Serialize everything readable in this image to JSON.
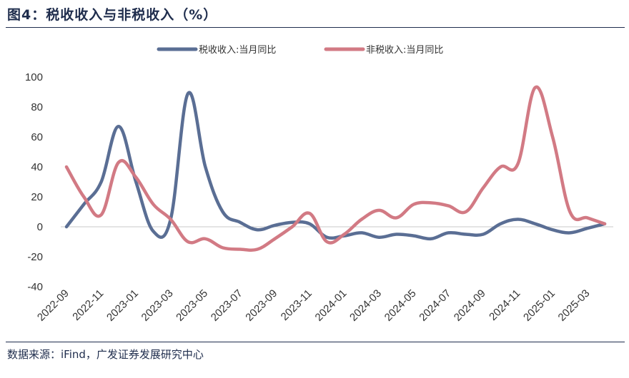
{
  "title": "图4：税收收入与非税收入（%）",
  "source": "数据来源：iFind，广发证券发展研究中心",
  "chart_data": {
    "type": "line",
    "title": "图4：税收收入与非税收入（%）",
    "xlabel": "",
    "ylabel": "",
    "ylim": [
      -40,
      100
    ],
    "yticks": [
      -40,
      -20,
      0,
      20,
      40,
      60,
      80,
      100
    ],
    "grid": false,
    "legend_position": "top-center",
    "x": [
      "2022-09",
      "2022-10",
      "2022-11",
      "2022-12",
      "2023-01",
      "2023-02",
      "2023-03",
      "2023-04",
      "2023-05",
      "2023-06",
      "2023-07",
      "2023-08",
      "2023-09",
      "2023-10",
      "2023-11",
      "2023-12",
      "2024-01",
      "2024-02",
      "2024-03",
      "2024-04",
      "2024-05",
      "2024-06",
      "2024-07",
      "2024-08",
      "2024-09",
      "2024-10",
      "2024-11",
      "2024-12",
      "2025-01",
      "2025-02",
      "2025-03",
      "2025-04"
    ],
    "xtick_labels": [
      "2022-09",
      "2022-11",
      "2023-01",
      "2023-03",
      "2023-05",
      "2023-07",
      "2023-09",
      "2023-11",
      "2024-01",
      "2024-03",
      "2024-05",
      "2024-07",
      "2024-09",
      "2024-11",
      "2025-01",
      "2025-03"
    ],
    "series": [
      {
        "name": "税收收入:当月同比",
        "color": "#5a6e94",
        "values": [
          0,
          15,
          30,
          67,
          30,
          -3,
          5,
          89,
          40,
          10,
          3,
          -2,
          1,
          3,
          2,
          -7,
          -6,
          -4,
          -7,
          -5,
          -6,
          -8,
          -4,
          -5,
          -5,
          2,
          5,
          2,
          -2,
          -4,
          -1,
          2
        ]
      },
      {
        "name": "非税收入:当月同比",
        "color": "#d27a84",
        "values": [
          40,
          20,
          8,
          43,
          33,
          15,
          5,
          -10,
          -8,
          -14,
          -15,
          -15,
          -8,
          0,
          9,
          -10,
          -5,
          5,
          11,
          6,
          15,
          16,
          14,
          10,
          26,
          40,
          42,
          93,
          60,
          10,
          6,
          2
        ]
      }
    ]
  }
}
